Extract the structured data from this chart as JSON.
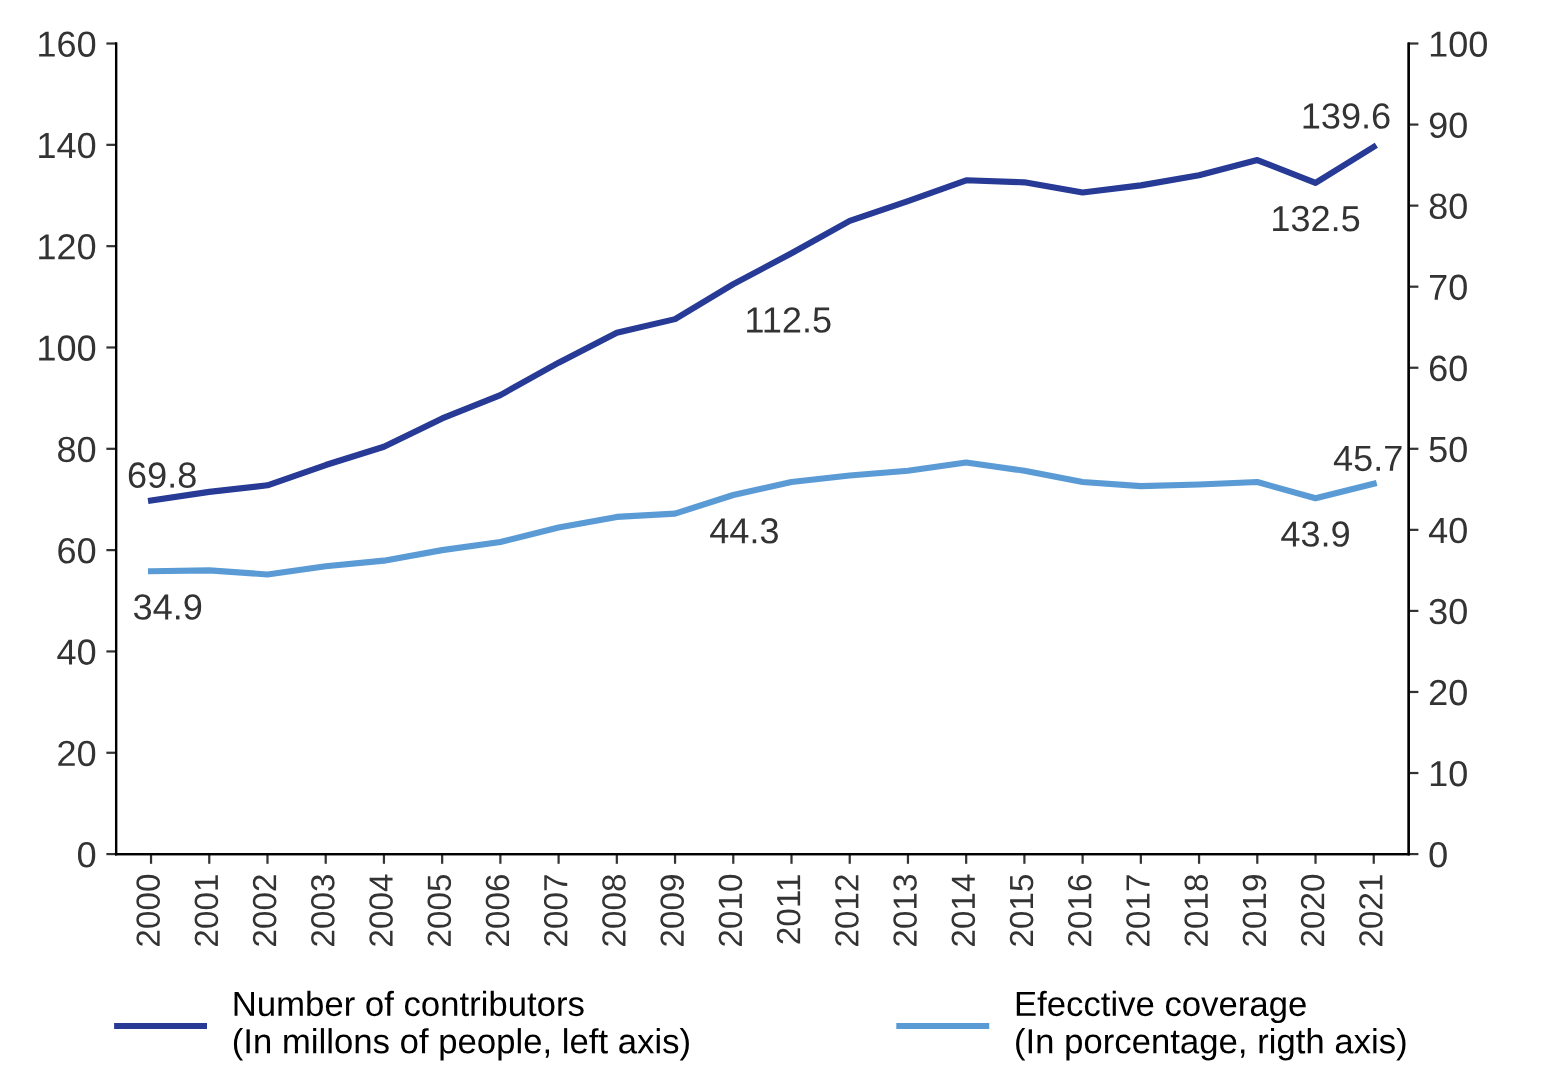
{
  "chart_data": {
    "type": "line",
    "categories": [
      "2000",
      "2001",
      "2002",
      "2003",
      "2004",
      "2005",
      "2006",
      "2007",
      "2008",
      "2009",
      "2010",
      "2011",
      "2012",
      "2013",
      "2014",
      "2015",
      "2016",
      "2017",
      "2018",
      "2019",
      "2020",
      "2021"
    ],
    "series": [
      {
        "name": "Number of contributors\n(In millons of people, left axis)",
        "color": "#263a96",
        "values": [
          69.8,
          71.5,
          72.8,
          76.8,
          80.4,
          86.0,
          90.6,
          97.0,
          102.9,
          105.6,
          112.5,
          118.6,
          125.0,
          128.9,
          133.0,
          132.6,
          130.6,
          132.0,
          134.0,
          137.0,
          132.5,
          139.6
        ],
        "value_labels": [
          "69.8",
          null,
          null,
          null,
          null,
          null,
          null,
          null,
          null,
          null,
          "112.5",
          null,
          null,
          null,
          null,
          null,
          null,
          null,
          null,
          null,
          "132.5",
          "139.6"
        ]
      },
      {
        "name": "Efecctive coverage\n(In porcentage, rigth axis)",
        "color": "#5b9bd5",
        "axis": "y2",
        "values": [
          34.9,
          35.0,
          34.5,
          35.5,
          36.2,
          37.5,
          38.5,
          40.3,
          41.6,
          42.0,
          44.3,
          45.9,
          46.7,
          47.3,
          48.3,
          47.3,
          45.9,
          45.4,
          45.6,
          45.9,
          43.9,
          45.7
        ],
        "value_labels": [
          "34.9",
          null,
          null,
          null,
          null,
          null,
          null,
          null,
          null,
          null,
          "44.3",
          null,
          null,
          null,
          null,
          null,
          null,
          null,
          null,
          null,
          "43.9",
          "45.7"
        ]
      }
    ],
    "ylim": [
      0,
      160
    ],
    "yticks": [
      0,
      20,
      40,
      60,
      80,
      100,
      120,
      140,
      160
    ],
    "y2lim": [
      0,
      100
    ],
    "y2ticks": [
      0,
      10,
      20,
      30,
      40,
      50,
      60,
      70,
      80,
      90,
      100
    ],
    "legend": "bottom",
    "grid": false,
    "marker": "none",
    "line_style": "solid"
  }
}
